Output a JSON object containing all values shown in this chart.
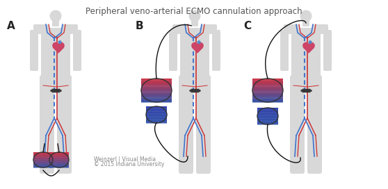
{
  "title": "Peripheral veno-arterial ECMO cannulation approach",
  "title_fontsize": 8.5,
  "title_color": "#555555",
  "label_A": "A",
  "label_B": "B",
  "label_C": "C",
  "watermark_line1": "Weinzerl | Visual Media",
  "watermark_line2": "© 2015 Indiana University",
  "watermark_fontsize": 5.5,
  "bg_color": "#ffffff",
  "body_color": "#e0e0e0",
  "artery_color": "#cc3333",
  "vein_color": "#4477cc",
  "heart_color": "#cc4466",
  "tube_color": "#111111",
  "pump_red": "#cc3344",
  "pump_blue": "#3355aa",
  "pump_mixed_top": "#cc3344",
  "pump_mixed_bottom": "#3355aa"
}
